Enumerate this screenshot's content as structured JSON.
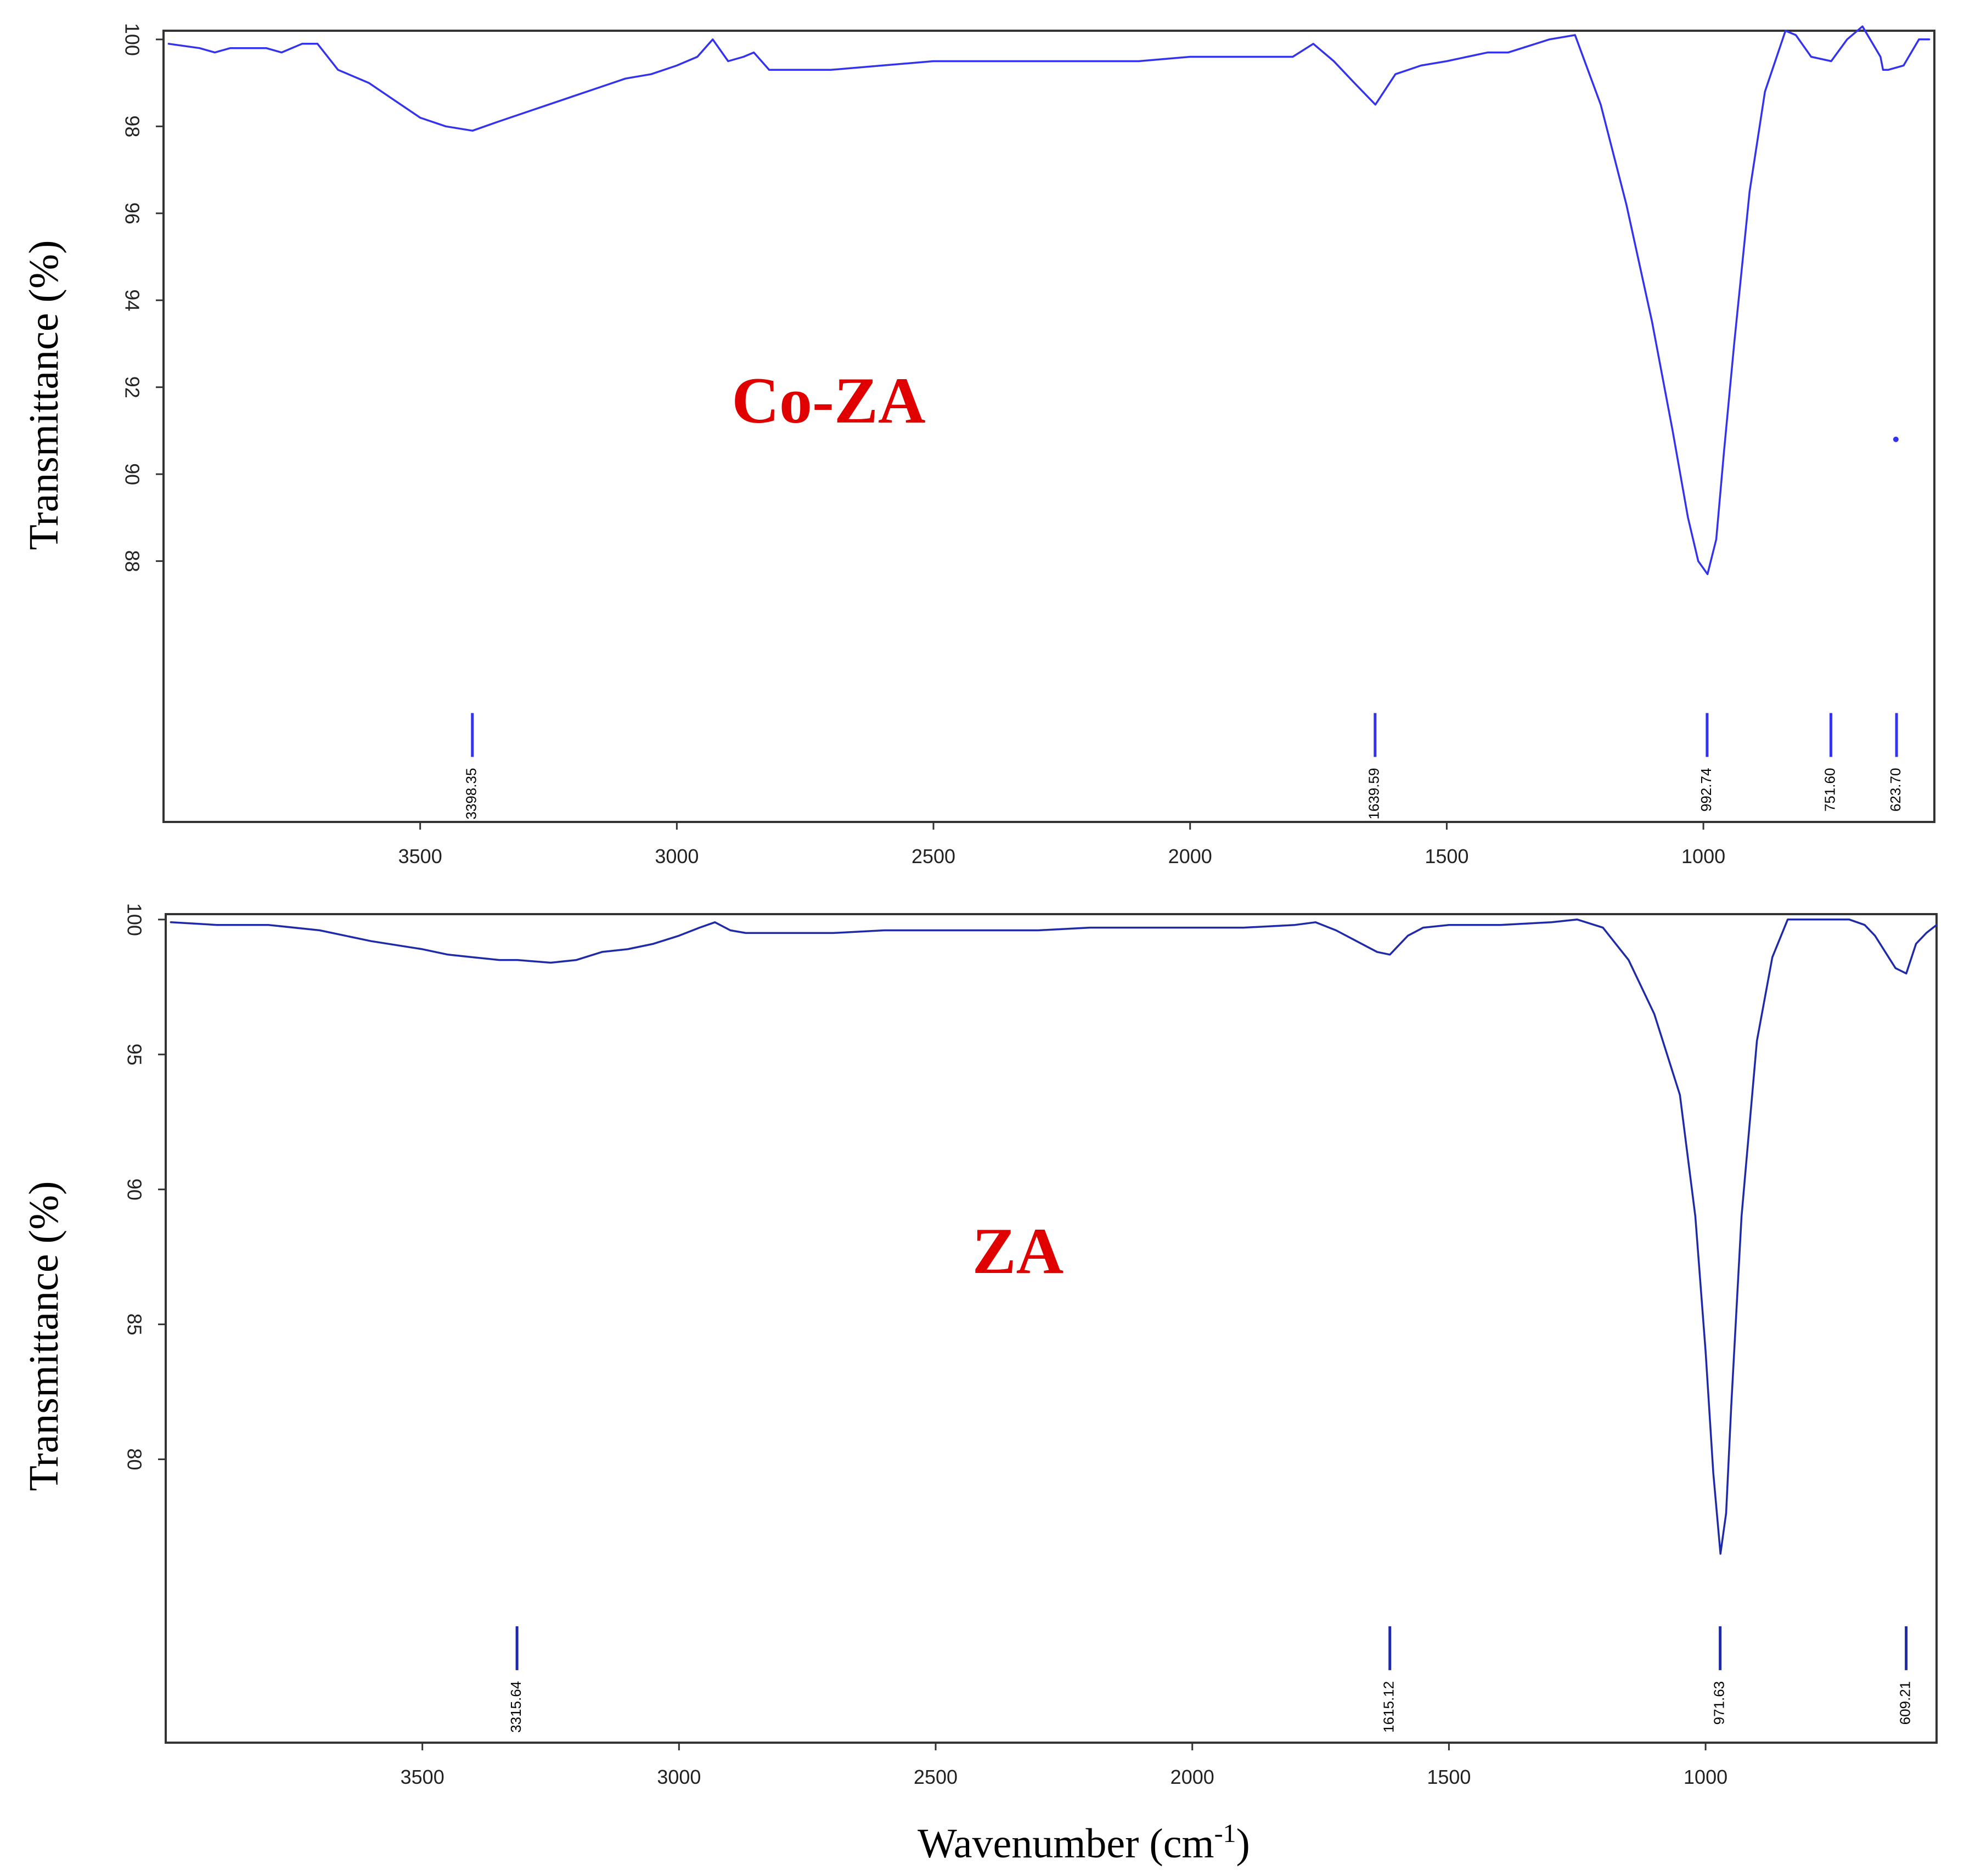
{
  "x_axis_title": "Wavenumber (cm",
  "x_axis_title_superscript": "-1",
  "x_axis_title_close": ")",
  "colors": {
    "top_line": "#3333ee",
    "bottom_line": "#1f2aa8",
    "sample_name": "#e00000",
    "axis_text": "#222222"
  },
  "chart_data": [
    {
      "type": "line",
      "name": "Co-ZA",
      "ylabel": "Transmittance (%)",
      "xlabel": "Wavenumber (cm-1)",
      "xlim": [
        4000,
        550
      ],
      "xticks": [
        3500,
        3000,
        2500,
        2000,
        1500,
        1000
      ],
      "ylim": [
        82.0,
        100.2
      ],
      "yticks": [
        88,
        90,
        92,
        94,
        96,
        98,
        100
      ],
      "peak_label_value": 84.0,
      "series": [
        {
          "name": "Co-ZA",
          "x": [
            3990,
            3930,
            3900,
            3870,
            3840,
            3800,
            3770,
            3730,
            3700,
            3660,
            3600,
            3550,
            3500,
            3450,
            3398,
            3350,
            3300,
            3250,
            3200,
            3150,
            3100,
            3050,
            3000,
            2960,
            2930,
            2900,
            2870,
            2850,
            2820,
            2700,
            2600,
            2500,
            2400,
            2300,
            2200,
            2100,
            2000,
            1900,
            1800,
            1760,
            1720,
            1680,
            1639,
            1600,
            1550,
            1500,
            1460,
            1420,
            1380,
            1300,
            1250,
            1200,
            1150,
            1100,
            1060,
            1030,
            1010,
            992,
            975,
            960,
            940,
            910,
            880,
            840,
            820,
            790,
            751,
            720,
            690,
            670,
            655,
            650,
            640,
            610,
            600,
            580,
            560
          ],
          "y": [
            99.9,
            99.8,
            99.7,
            99.8,
            99.8,
            99.8,
            99.7,
            99.9,
            99.9,
            99.3,
            99.0,
            98.6,
            98.2,
            98.0,
            97.9,
            98.1,
            98.3,
            98.5,
            98.7,
            98.9,
            99.1,
            99.2,
            99.4,
            99.6,
            100.0,
            99.5,
            99.6,
            99.7,
            99.3,
            99.3,
            99.4,
            99.5,
            99.5,
            99.5,
            99.5,
            99.5,
            99.6,
            99.6,
            99.6,
            99.9,
            99.5,
            99.0,
            98.5,
            99.2,
            99.4,
            99.5,
            99.6,
            99.7,
            99.7,
            100.0,
            100.1,
            98.5,
            96.2,
            93.5,
            91.0,
            89.0,
            88.0,
            87.7,
            88.5,
            90.5,
            93.0,
            96.5,
            98.8,
            100.2,
            100.1,
            99.6,
            99.5,
            100.0,
            100.3,
            99.9,
            99.6,
            99.3,
            99.3,
            99.4,
            99.6,
            100.0,
            100.0
          ]
        }
      ],
      "peaks": [
        {
          "label": "3398.35",
          "x": 3398.35
        },
        {
          "label": "1639.59",
          "x": 1639.59
        },
        {
          "label": "992.74",
          "x": 992.74
        },
        {
          "label": "751.60",
          "x": 751.6
        },
        {
          "label": "623.70",
          "x": 623.7
        }
      ],
      "stray_point": {
        "x": 625,
        "y": 90.8
      }
    },
    {
      "type": "line",
      "name": "ZA",
      "ylabel": "Transmittance (%)",
      "xlabel": "Wavenumber (cm-1)",
      "xlim": [
        4000,
        550
      ],
      "xticks": [
        3500,
        3000,
        2500,
        2000,
        1500,
        1000
      ],
      "ylim": [
        69.5,
        100.2
      ],
      "yticks": [
        80,
        85,
        90,
        95,
        100
      ],
      "peak_label_value": 73.0,
      "series": [
        {
          "name": "ZA",
          "x": [
            3990,
            3900,
            3800,
            3700,
            3600,
            3500,
            3450,
            3400,
            3350,
            3315,
            3250,
            3200,
            3150,
            3100,
            3050,
            3000,
            2960,
            2930,
            2900,
            2870,
            2800,
            2700,
            2600,
            2500,
            2400,
            2300,
            2200,
            2100,
            2000,
            1900,
            1800,
            1760,
            1720,
            1680,
            1640,
            1615,
            1580,
            1550,
            1500,
            1400,
            1300,
            1250,
            1200,
            1150,
            1100,
            1050,
            1020,
            1000,
            985,
            971,
            960,
            950,
            930,
            900,
            870,
            840,
            820,
            780,
            720,
            690,
            670,
            650,
            630,
            609,
            590,
            570,
            550
          ],
          "y": [
            99.9,
            99.8,
            99.8,
            99.6,
            99.2,
            98.9,
            98.7,
            98.6,
            98.5,
            98.5,
            98.4,
            98.5,
            98.8,
            98.9,
            99.1,
            99.4,
            99.7,
            99.9,
            99.6,
            99.5,
            99.5,
            99.5,
            99.6,
            99.6,
            99.6,
            99.6,
            99.7,
            99.7,
            99.7,
            99.7,
            99.8,
            99.9,
            99.6,
            99.2,
            98.8,
            98.7,
            99.4,
            99.7,
            99.8,
            99.8,
            99.9,
            100.0,
            99.7,
            98.5,
            96.5,
            93.5,
            89.0,
            84.0,
            79.5,
            76.5,
            78.0,
            82.0,
            89.0,
            95.5,
            98.6,
            100.0,
            100.0,
            100.0,
            100.0,
            99.8,
            99.4,
            98.8,
            98.2,
            98.0,
            99.1,
            99.5,
            99.8
          ]
        }
      ],
      "peaks": [
        {
          "label": "3315.64",
          "x": 3315.64
        },
        {
          "label": "1615.12",
          "x": 1615.12
        },
        {
          "label": "971.63",
          "x": 971.63
        },
        {
          "label": "609.21",
          "x": 609.21
        }
      ]
    }
  ]
}
